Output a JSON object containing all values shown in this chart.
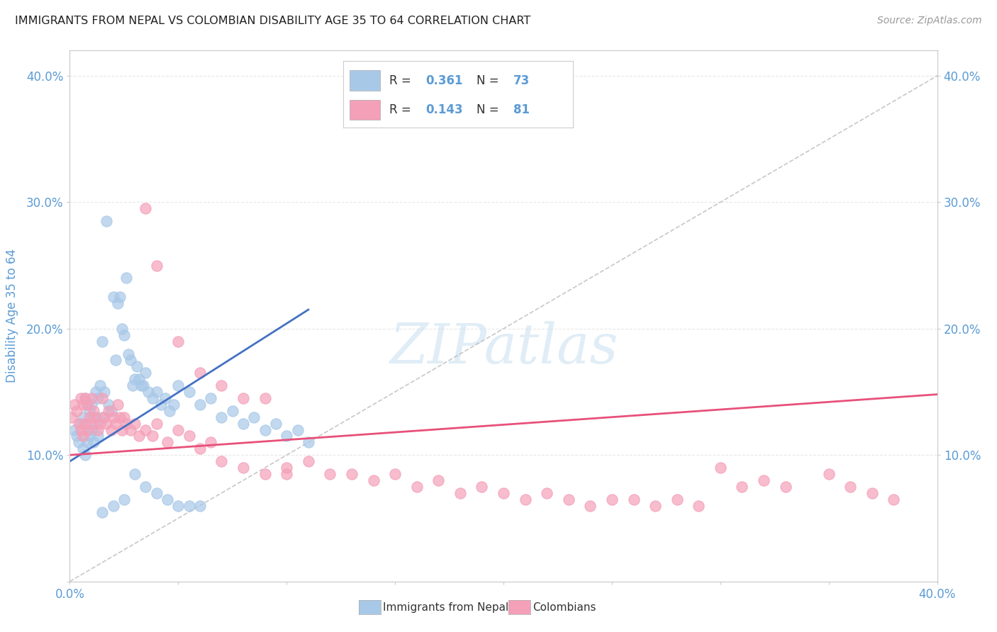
{
  "title": "IMMIGRANTS FROM NEPAL VS COLOMBIAN DISABILITY AGE 35 TO 64 CORRELATION CHART",
  "source": "Source: ZipAtlas.com",
  "ylabel": "Disability Age 35 to 64",
  "xlim": [
    0.0,
    0.4
  ],
  "ylim": [
    0.0,
    0.42
  ],
  "xticks": [
    0.0,
    0.05,
    0.1,
    0.15,
    0.2,
    0.25,
    0.3,
    0.35,
    0.4
  ],
  "yticks_left": [
    0.0,
    0.1,
    0.2,
    0.3,
    0.4
  ],
  "yticks_right": [
    0.1,
    0.2,
    0.3,
    0.4
  ],
  "nepal_R": 0.361,
  "nepal_N": 73,
  "colombia_R": 0.143,
  "colombia_N": 81,
  "nepal_color": "#a8c8e8",
  "nepal_line_color": "#4472c4",
  "colombia_color": "#f4a0b8",
  "colombia_line_color": "#e8507a",
  "nepal_scatter_x": [
    0.002,
    0.003,
    0.004,
    0.005,
    0.006,
    0.006,
    0.007,
    0.007,
    0.008,
    0.008,
    0.009,
    0.009,
    0.01,
    0.01,
    0.011,
    0.011,
    0.012,
    0.012,
    0.013,
    0.013,
    0.014,
    0.015,
    0.015,
    0.016,
    0.017,
    0.018,
    0.019,
    0.02,
    0.021,
    0.022,
    0.023,
    0.024,
    0.025,
    0.026,
    0.027,
    0.028,
    0.029,
    0.03,
    0.031,
    0.032,
    0.033,
    0.034,
    0.035,
    0.036,
    0.038,
    0.04,
    0.042,
    0.044,
    0.046,
    0.048,
    0.05,
    0.055,
    0.06,
    0.065,
    0.07,
    0.075,
    0.08,
    0.085,
    0.09,
    0.095,
    0.1,
    0.105,
    0.11,
    0.03,
    0.025,
    0.02,
    0.015,
    0.035,
    0.04,
    0.045,
    0.05,
    0.055,
    0.06
  ],
  "nepal_scatter_y": [
    0.12,
    0.115,
    0.11,
    0.125,
    0.13,
    0.105,
    0.145,
    0.1,
    0.14,
    0.11,
    0.135,
    0.115,
    0.14,
    0.12,
    0.13,
    0.11,
    0.15,
    0.125,
    0.145,
    0.115,
    0.155,
    0.19,
    0.13,
    0.15,
    0.285,
    0.14,
    0.135,
    0.225,
    0.175,
    0.22,
    0.225,
    0.2,
    0.195,
    0.24,
    0.18,
    0.175,
    0.155,
    0.16,
    0.17,
    0.16,
    0.155,
    0.155,
    0.165,
    0.15,
    0.145,
    0.15,
    0.14,
    0.145,
    0.135,
    0.14,
    0.155,
    0.15,
    0.14,
    0.145,
    0.13,
    0.135,
    0.125,
    0.13,
    0.12,
    0.125,
    0.115,
    0.12,
    0.11,
    0.085,
    0.065,
    0.06,
    0.055,
    0.075,
    0.07,
    0.065,
    0.06,
    0.06,
    0.06
  ],
  "colombia_scatter_x": [
    0.001,
    0.002,
    0.003,
    0.004,
    0.005,
    0.005,
    0.006,
    0.006,
    0.007,
    0.007,
    0.008,
    0.008,
    0.009,
    0.01,
    0.01,
    0.011,
    0.012,
    0.013,
    0.014,
    0.015,
    0.016,
    0.017,
    0.018,
    0.019,
    0.02,
    0.021,
    0.022,
    0.023,
    0.024,
    0.025,
    0.026,
    0.028,
    0.03,
    0.032,
    0.035,
    0.038,
    0.04,
    0.045,
    0.05,
    0.055,
    0.06,
    0.065,
    0.07,
    0.08,
    0.09,
    0.1,
    0.11,
    0.12,
    0.13,
    0.14,
    0.15,
    0.16,
    0.17,
    0.18,
    0.19,
    0.2,
    0.21,
    0.22,
    0.23,
    0.24,
    0.25,
    0.26,
    0.27,
    0.28,
    0.29,
    0.3,
    0.31,
    0.32,
    0.33,
    0.35,
    0.36,
    0.37,
    0.38,
    0.035,
    0.04,
    0.05,
    0.06,
    0.07,
    0.08,
    0.09,
    0.1
  ],
  "colombia_scatter_y": [
    0.13,
    0.14,
    0.135,
    0.125,
    0.145,
    0.12,
    0.14,
    0.115,
    0.145,
    0.125,
    0.14,
    0.12,
    0.13,
    0.145,
    0.125,
    0.135,
    0.13,
    0.12,
    0.125,
    0.145,
    0.13,
    0.125,
    0.135,
    0.12,
    0.13,
    0.125,
    0.14,
    0.13,
    0.12,
    0.13,
    0.125,
    0.12,
    0.125,
    0.115,
    0.12,
    0.115,
    0.125,
    0.11,
    0.12,
    0.115,
    0.105,
    0.11,
    0.095,
    0.09,
    0.085,
    0.09,
    0.095,
    0.085,
    0.085,
    0.08,
    0.085,
    0.075,
    0.08,
    0.07,
    0.075,
    0.07,
    0.065,
    0.07,
    0.065,
    0.06,
    0.065,
    0.065,
    0.06,
    0.065,
    0.06,
    0.09,
    0.075,
    0.08,
    0.075,
    0.085,
    0.075,
    0.07,
    0.065,
    0.295,
    0.25,
    0.19,
    0.165,
    0.155,
    0.145,
    0.145,
    0.085
  ],
  "nepal_trend_x": [
    0.0,
    0.11
  ],
  "nepal_trend_y": [
    0.095,
    0.215
  ],
  "colombia_trend_x": [
    0.0,
    0.4
  ],
  "colombia_trend_y": [
    0.1,
    0.148
  ],
  "ref_line_x": [
    0.0,
    0.42
  ],
  "ref_line_y": [
    0.0,
    0.42
  ],
  "watermark_text": "ZIPatlas",
  "background_color": "#ffffff",
  "grid_color": "#e8e8e8",
  "title_color": "#222222",
  "axis_label_color": "#5b9bd5",
  "tick_label_color": "#5b9bd5",
  "legend_color": "#5b9bd5"
}
